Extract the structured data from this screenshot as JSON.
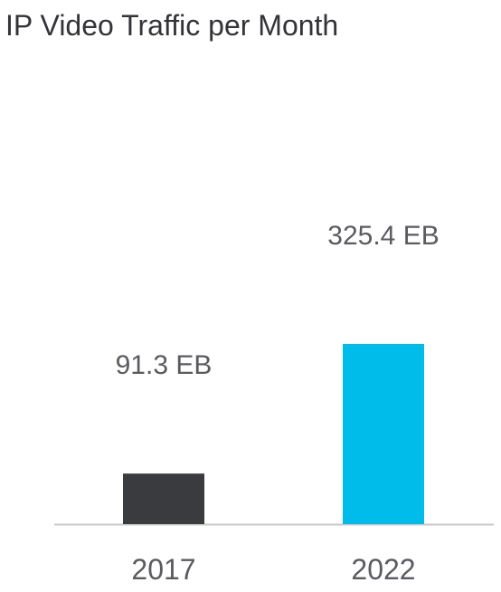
{
  "chart_data": {
    "type": "bar",
    "title": "IP Video Traffic per Month",
    "categories": [
      "2017",
      "2022"
    ],
    "values": [
      91.3,
      325.4
    ],
    "unit": "EB",
    "data_labels": [
      "91.3 EB",
      "325.4 EB"
    ],
    "colors": [
      "#3a3b3f",
      "#00bceb"
    ],
    "baseline_color": "#c8c8c8",
    "xlabel": "",
    "ylabel": "",
    "grid": false,
    "legend": "none"
  }
}
